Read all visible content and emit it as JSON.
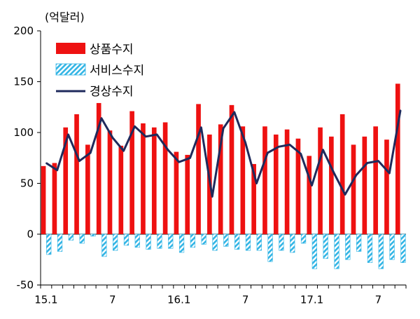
{
  "chart_data": {
    "type": "bar",
    "unit_label": "(억달러)",
    "x": [
      "15.1",
      "15.2",
      "15.3",
      "15.4",
      "15.5",
      "15.6",
      "15.7",
      "15.8",
      "15.9",
      "15.10",
      "15.11",
      "15.12",
      "16.1",
      "16.2",
      "16.3",
      "16.4",
      "16.5",
      "16.6",
      "16.7",
      "16.8",
      "16.9",
      "16.10",
      "16.11",
      "16.12",
      "17.1",
      "17.2",
      "17.3",
      "17.4",
      "17.5",
      "17.6",
      "17.7",
      "17.8",
      "17.9"
    ],
    "x_tick_labels": [
      {
        "index": 0,
        "label": "15.1"
      },
      {
        "index": 6,
        "label": "7"
      },
      {
        "index": 12,
        "label": "16.1"
      },
      {
        "index": 18,
        "label": "7"
      },
      {
        "index": 24,
        "label": "17.1"
      },
      {
        "index": 30,
        "label": "7"
      }
    ],
    "ylim": [
      -50,
      200
    ],
    "y_ticks": [
      -50,
      0,
      50,
      100,
      150,
      200
    ],
    "legend_position": "top-left",
    "series": [
      {
        "name": "상품수지",
        "kind": "bar",
        "color": "#ee1111",
        "values": [
          67,
          70,
          105,
          118,
          88,
          129,
          102,
          87,
          121,
          109,
          105,
          110,
          81,
          78,
          128,
          98,
          108,
          127,
          106,
          69,
          106,
          98,
          103,
          94,
          77,
          105,
          96,
          118,
          88,
          96,
          106,
          93,
          148
        ]
      },
      {
        "name": "서비스수지",
        "kind": "bar-hatched",
        "color": "#33b5e5",
        "values": [
          -20,
          -17,
          -6,
          -9,
          -2,
          -22,
          -16,
          -11,
          -13,
          -15,
          -14,
          -14,
          -18,
          -13,
          -10,
          -16,
          -12,
          -15,
          -16,
          -16,
          -27,
          -16,
          -18,
          -9,
          -34,
          -24,
          -34,
          -25,
          -17,
          -28,
          -34,
          -25,
          -28
        ]
      },
      {
        "name": "경상수지",
        "kind": "line",
        "color": "#1f2a5c",
        "values": [
          70,
          63,
          98,
          72,
          80,
          114,
          95,
          82,
          106,
          96,
          98,
          83,
          71,
          75,
          105,
          37,
          104,
          120,
          90,
          50,
          80,
          86,
          88,
          79,
          48,
          83,
          60,
          39,
          58,
          70,
          72,
          60,
          122
        ]
      }
    ]
  }
}
